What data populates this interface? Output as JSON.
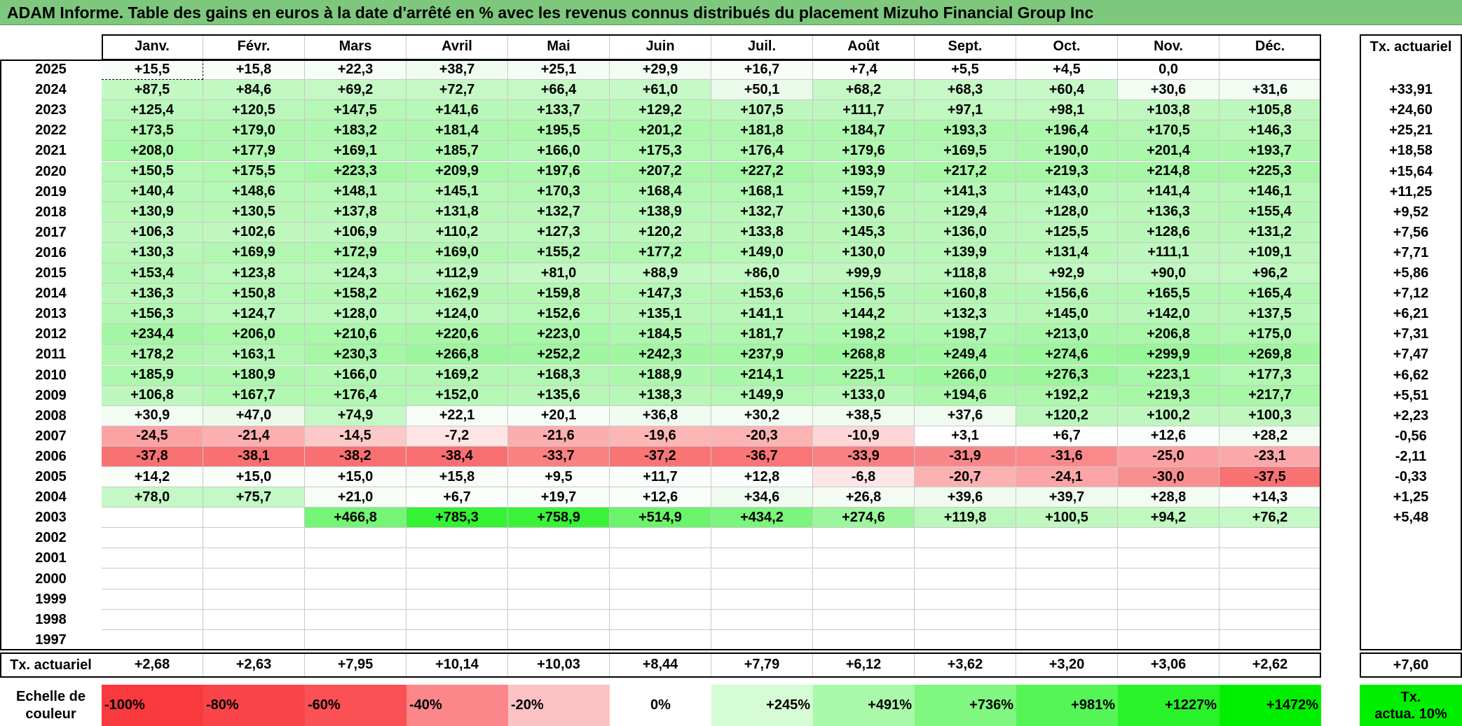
{
  "title": "ADAM Informe. Table des gains en euros à la date d'arrêté en % avec les revenus connus distribués du placement Mizuho Financial Group Inc",
  "months": [
    "Janv.",
    "Févr.",
    "Mars",
    "Avril",
    "Mai",
    "Juin",
    "Juil.",
    "Août",
    "Sept.",
    "Oct.",
    "Nov.",
    "Déc."
  ],
  "tx_header": "Tx. actuariel",
  "rows": [
    {
      "year": "2025",
      "values": [
        "+15,5",
        "+15,8",
        "+22,3",
        "+38,7",
        "+25,1",
        "+29,9",
        "+16,7",
        "+7,4",
        "+5,5",
        "+4,5",
        "0,0",
        ""
      ],
      "tx": ""
    },
    {
      "year": "2024",
      "values": [
        "+87,5",
        "+84,6",
        "+69,2",
        "+72,7",
        "+66,4",
        "+61,0",
        "+50,1",
        "+68,2",
        "+68,3",
        "+60,4",
        "+30,6",
        "+31,6"
      ],
      "tx": "+33,91"
    },
    {
      "year": "2023",
      "values": [
        "+125,4",
        "+120,5",
        "+147,5",
        "+141,6",
        "+133,7",
        "+129,2",
        "+107,5",
        "+111,7",
        "+97,1",
        "+98,1",
        "+103,8",
        "+105,8"
      ],
      "tx": "+24,60"
    },
    {
      "year": "2022",
      "values": [
        "+173,5",
        "+179,0",
        "+183,2",
        "+181,4",
        "+195,5",
        "+201,2",
        "+181,8",
        "+184,7",
        "+193,3",
        "+196,4",
        "+170,5",
        "+146,3"
      ],
      "tx": "+25,21"
    },
    {
      "year": "2021",
      "values": [
        "+208,0",
        "+177,9",
        "+169,1",
        "+185,7",
        "+166,0",
        "+175,3",
        "+176,4",
        "+179,6",
        "+169,5",
        "+190,0",
        "+201,4",
        "+193,7"
      ],
      "tx": "+18,58"
    },
    {
      "year": "2020",
      "values": [
        "+150,5",
        "+175,5",
        "+223,3",
        "+209,9",
        "+197,6",
        "+207,2",
        "+227,2",
        "+193,9",
        "+217,2",
        "+219,3",
        "+214,8",
        "+225,3"
      ],
      "tx": "+15,64"
    },
    {
      "year": "2019",
      "values": [
        "+140,4",
        "+148,6",
        "+148,1",
        "+145,1",
        "+170,3",
        "+168,4",
        "+168,1",
        "+159,7",
        "+141,3",
        "+143,0",
        "+141,4",
        "+146,1"
      ],
      "tx": "+11,25"
    },
    {
      "year": "2018",
      "values": [
        "+130,9",
        "+130,5",
        "+137,8",
        "+131,8",
        "+132,7",
        "+138,9",
        "+132,7",
        "+130,6",
        "+129,4",
        "+128,0",
        "+136,3",
        "+155,4"
      ],
      "tx": "+9,52"
    },
    {
      "year": "2017",
      "values": [
        "+106,3",
        "+102,6",
        "+106,9",
        "+110,2",
        "+127,3",
        "+120,2",
        "+133,8",
        "+145,3",
        "+136,0",
        "+125,5",
        "+128,6",
        "+131,2"
      ],
      "tx": "+7,56"
    },
    {
      "year": "2016",
      "values": [
        "+130,3",
        "+169,9",
        "+172,9",
        "+169,0",
        "+155,2",
        "+177,2",
        "+149,0",
        "+130,0",
        "+139,9",
        "+131,4",
        "+111,1",
        "+109,1"
      ],
      "tx": "+7,71"
    },
    {
      "year": "2015",
      "values": [
        "+153,4",
        "+123,8",
        "+124,3",
        "+112,9",
        "+81,0",
        "+88,9",
        "+86,0",
        "+99,9",
        "+118,8",
        "+92,9",
        "+90,0",
        "+96,2"
      ],
      "tx": "+5,86"
    },
    {
      "year": "2014",
      "values": [
        "+136,3",
        "+150,8",
        "+158,2",
        "+162,9",
        "+159,8",
        "+147,3",
        "+153,6",
        "+156,5",
        "+160,8",
        "+156,6",
        "+165,5",
        "+165,4"
      ],
      "tx": "+7,12"
    },
    {
      "year": "2013",
      "values": [
        "+156,3",
        "+124,7",
        "+128,0",
        "+124,0",
        "+152,6",
        "+135,1",
        "+141,1",
        "+144,2",
        "+132,3",
        "+145,0",
        "+142,0",
        "+137,5"
      ],
      "tx": "+6,21"
    },
    {
      "year": "2012",
      "values": [
        "+234,4",
        "+206,0",
        "+210,6",
        "+220,6",
        "+223,0",
        "+184,5",
        "+181,7",
        "+198,2",
        "+198,7",
        "+213,0",
        "+206,8",
        "+175,0"
      ],
      "tx": "+7,31"
    },
    {
      "year": "2011",
      "values": [
        "+178,2",
        "+163,1",
        "+230,3",
        "+266,8",
        "+252,2",
        "+242,3",
        "+237,9",
        "+268,8",
        "+249,4",
        "+274,6",
        "+299,9",
        "+269,8"
      ],
      "tx": "+7,47"
    },
    {
      "year": "2010",
      "values": [
        "+185,9",
        "+180,9",
        "+166,0",
        "+169,2",
        "+168,3",
        "+188,9",
        "+214,1",
        "+225,1",
        "+266,0",
        "+276,3",
        "+223,1",
        "+177,3"
      ],
      "tx": "+6,62"
    },
    {
      "year": "2009",
      "values": [
        "+106,8",
        "+167,7",
        "+176,4",
        "+152,0",
        "+135,6",
        "+138,3",
        "+149,9",
        "+133,0",
        "+194,6",
        "+192,2",
        "+219,3",
        "+217,7"
      ],
      "tx": "+5,51"
    },
    {
      "year": "2008",
      "values": [
        "+30,9",
        "+47,0",
        "+74,9",
        "+22,1",
        "+20,1",
        "+36,8",
        "+30,2",
        "+38,5",
        "+37,6",
        "+120,2",
        "+100,2",
        "+100,3"
      ],
      "tx": "+2,23"
    },
    {
      "year": "2007",
      "values": [
        "-24,5",
        "-21,4",
        "-14,5",
        "-7,2",
        "-21,6",
        "-19,6",
        "-20,3",
        "-10,9",
        "+3,1",
        "+6,7",
        "+12,6",
        "+28,2"
      ],
      "tx": "-0,56"
    },
    {
      "year": "2006",
      "values": [
        "-37,8",
        "-38,1",
        "-38,2",
        "-38,4",
        "-33,7",
        "-37,2",
        "-36,7",
        "-33,9",
        "-31,9",
        "-31,6",
        "-25,0",
        "-23,1"
      ],
      "tx": "-2,11"
    },
    {
      "year": "2005",
      "values": [
        "+14,2",
        "+15,0",
        "+15,0",
        "+15,8",
        "+9,5",
        "+11,7",
        "+12,8",
        "-6,8",
        "-20,7",
        "-24,1",
        "-30,0",
        "-37,5"
      ],
      "tx": "-0,33"
    },
    {
      "year": "2004",
      "values": [
        "+78,0",
        "+75,7",
        "+21,0",
        "+6,7",
        "+19,7",
        "+12,6",
        "+34,6",
        "+26,8",
        "+39,6",
        "+39,7",
        "+28,8",
        "+14,3"
      ],
      "tx": "+1,25"
    },
    {
      "year": "2003",
      "values": [
        "",
        "",
        "+466,8",
        "+785,3",
        "+758,9",
        "+514,9",
        "+434,2",
        "+274,6",
        "+119,8",
        "+100,5",
        "+94,2",
        "+76,2"
      ],
      "tx": "+5,48"
    },
    {
      "year": "2002",
      "values": [
        "",
        "",
        "",
        "",
        "",
        "",
        "",
        "",
        "",
        "",
        "",
        ""
      ],
      "tx": ""
    },
    {
      "year": "2001",
      "values": [
        "",
        "",
        "",
        "",
        "",
        "",
        "",
        "",
        "",
        "",
        "",
        ""
      ],
      "tx": ""
    },
    {
      "year": "2000",
      "values": [
        "",
        "",
        "",
        "",
        "",
        "",
        "",
        "",
        "",
        "",
        "",
        ""
      ],
      "tx": ""
    },
    {
      "year": "1999",
      "values": [
        "",
        "",
        "",
        "",
        "",
        "",
        "",
        "",
        "",
        "",
        "",
        ""
      ],
      "tx": ""
    },
    {
      "year": "1998",
      "values": [
        "",
        "",
        "",
        "",
        "",
        "",
        "",
        "",
        "",
        "",
        "",
        ""
      ],
      "tx": ""
    },
    {
      "year": "1997",
      "values": [
        "",
        "",
        "",
        "",
        "",
        "",
        "",
        "",
        "",
        "",
        "",
        ""
      ],
      "tx": ""
    }
  ],
  "footer": {
    "label": "Tx. actuariel",
    "values": [
      "+2,68",
      "+2,63",
      "+7,95",
      "+10,14",
      "+10,03",
      "+8,44",
      "+7,79",
      "+6,12",
      "+3,62",
      "+3,20",
      "+3,06",
      "+2,62"
    ],
    "tx": "+7,60"
  },
  "scale": {
    "label_line1": "Echelle de",
    "label_line2": "couleur",
    "items": [
      {
        "label": "-100%",
        "color": "#f8393e",
        "align": "left"
      },
      {
        "label": "-80%",
        "color": "#f9454a",
        "align": "left"
      },
      {
        "label": "-60%",
        "color": "#fa5155",
        "align": "left"
      },
      {
        "label": "-40%",
        "color": "#fc878a",
        "align": "left"
      },
      {
        "label": "-20%",
        "color": "#fdc3c4",
        "align": "left"
      },
      {
        "label": "0%",
        "color": "#ffffff",
        "align": "center"
      },
      {
        "label": "+245%",
        "color": "#d6fcd6",
        "align": "right"
      },
      {
        "label": "+491%",
        "color": "#aaf9aa",
        "align": "right"
      },
      {
        "label": "+736%",
        "color": "#80f780",
        "align": "right"
      },
      {
        "label": "+981%",
        "color": "#55f555",
        "align": "right"
      },
      {
        "label": "+1227%",
        "color": "#2af22a",
        "align": "right"
      },
      {
        "label": "+1472%",
        "color": "#00f000",
        "align": "right"
      }
    ],
    "tx_line1": "Tx.",
    "tx_line2": "actua. 10%",
    "tx_color": "#00ee00"
  },
  "colors": {
    "title_bg": "#7dc87d",
    "negative_max": "#f8696b",
    "positive_max": "#63be7b",
    "neutral": "#ffffff"
  }
}
